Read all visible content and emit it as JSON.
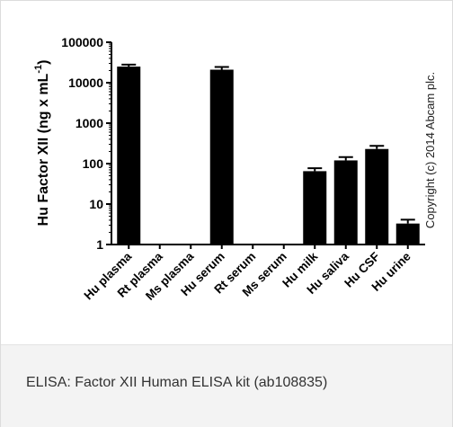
{
  "chart_data": {
    "type": "bar",
    "categories": [
      "Hu plasma",
      "Rt plasma",
      "Ms plasma",
      "Hu serum",
      "Rt serum",
      "Ms serum",
      "Hu milk",
      "Hu saliva",
      "Hu CSF",
      "Hu urine"
    ],
    "values": [
      25000,
      null,
      null,
      21000,
      null,
      null,
      65,
      120,
      230,
      3.3
    ],
    "error": [
      3000,
      null,
      null,
      3500,
      null,
      null,
      12,
      25,
      45,
      0.8
    ],
    "ylabel_main": "Hu Factor XII (ng x mL",
    "ylabel_sup": "-1",
    "ylabel_close": ")",
    "yscale": "log",
    "ylim": [
      1,
      100000
    ],
    "yticks": [
      "1",
      "10",
      "100",
      "1000",
      "10000",
      "100000"
    ],
    "copyright": "Copyright (c) 2014 Abcam plc.",
    "bar_color": "#000000",
    "grid": false,
    "legend": "none"
  },
  "caption": "ELISA: Factor XII Human ELISA kit (ab108835)"
}
